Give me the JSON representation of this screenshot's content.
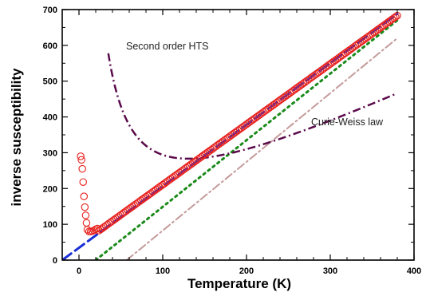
{
  "chart_data": {
    "type": "scatter",
    "xlabel": "Temperature (K)",
    "ylabel": "inverse susceptibility",
    "xlim": [
      -20,
      400
    ],
    "ylim": [
      0,
      700
    ],
    "x_ticks": [
      0,
      100,
      200,
      300,
      400
    ],
    "y_ticks": [
      0,
      100,
      200,
      300,
      400,
      500,
      600,
      700
    ],
    "grid": false,
    "annotations": [
      {
        "id": "second-order",
        "text": "Second order HTS"
      },
      {
        "id": "curie-weiss",
        "text": "Curie-Weiss law"
      }
    ],
    "series": [
      {
        "kind": "scatter",
        "marker": "open-circle",
        "color": "#e8201c",
        "points": [
          [
            2,
            290
          ],
          [
            3,
            280
          ],
          [
            4,
            255
          ],
          [
            5,
            218
          ],
          [
            6,
            178
          ],
          [
            7,
            148
          ],
          [
            8,
            125
          ],
          [
            9,
            104
          ],
          [
            10,
            85
          ],
          [
            12,
            80
          ],
          [
            14,
            80
          ],
          [
            16,
            81
          ],
          [
            18,
            83
          ],
          [
            20,
            86
          ],
          [
            22,
            88
          ]
        ],
        "linear_segment": {
          "x_start": 24,
          "x_end": 380,
          "step": 2,
          "slope": 1.687,
          "intercept": 42
        }
      },
      {
        "kind": "line",
        "style": "long-dash",
        "color": "#1a2fd6",
        "points": [
          [
            -20,
            0
          ],
          [
            380,
            688
          ]
        ]
      },
      {
        "kind": "line",
        "style": "dotted",
        "color": "#1a8a1a",
        "points": [
          [
            20,
            0
          ],
          [
            380,
            670
          ]
        ]
      },
      {
        "kind": "line",
        "style": "dash-dot",
        "color": "#c49a9a",
        "points": [
          [
            57,
            0
          ],
          [
            380,
            620
          ]
        ]
      },
      {
        "kind": "curve",
        "style": "dash-dot",
        "color": "#5a0a4a",
        "equation": {
          "type": "hyperbola",
          "c": 1.12,
          "a": 22,
          "b": 4000,
          "floor": 210
        },
        "x_range": [
          35,
          380
        ]
      }
    ]
  }
}
